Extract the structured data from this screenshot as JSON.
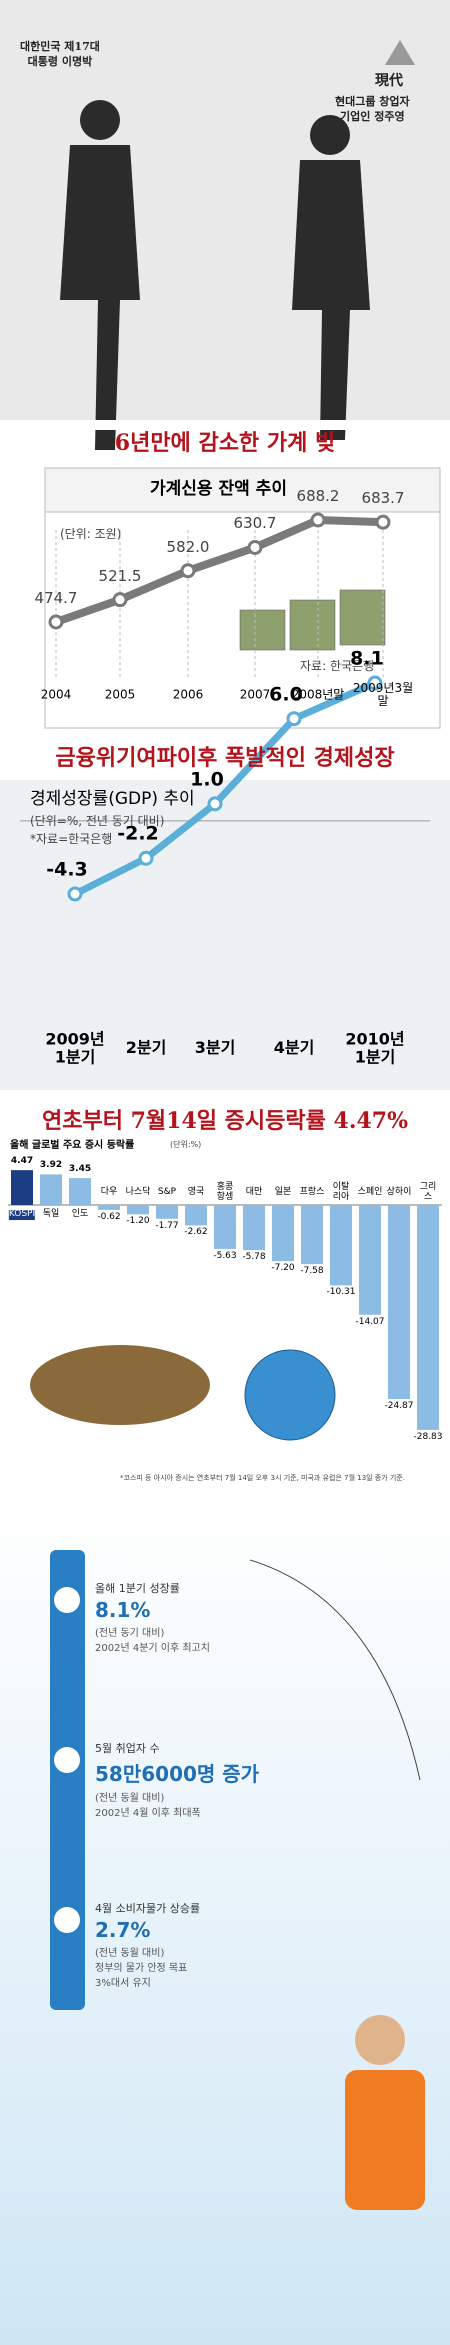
{
  "top_photo": {
    "left_caption": "대한민국 제17대\n대통령 이명박",
    "right_logo": "現代",
    "right_caption": "현대그룹 창업자\n기업인 정주영"
  },
  "sections": [
    "6년만에 감소한 가계 빚",
    "금융위기여파이후 폭발적인 경제성장",
    "연초부터 7월14일 증시등락률 4.47%"
  ],
  "chart_data": [
    {
      "type": "line",
      "title": "가계신용 잔액 추이",
      "unit": "(단위: 조원)",
      "source": "자료: 한국은행",
      "categories": [
        "2004",
        "2005",
        "2006",
        "2007",
        "2008년말",
        "2009년3월말"
      ],
      "values": [
        474.7,
        521.5,
        582.0,
        630.7,
        688.2,
        683.7
      ],
      "value_labels": [
        "474.7",
        "521.5",
        "582.0",
        "630.7",
        "688.2",
        "683.7"
      ],
      "color": "#7a7a7a"
    },
    {
      "type": "line",
      "title": "경제성장률(GDP) 추이",
      "unit": "(단위=%, 전년 동기 대비)",
      "source": "*자료=한국은행",
      "categories": [
        "2009년\n1분기",
        "2분기",
        "3분기",
        "4분기",
        "2010년\n1분기"
      ],
      "values": [
        -4.3,
        -2.2,
        1.0,
        6.0,
        8.1
      ],
      "value_labels": [
        "-4.3",
        "-2.2",
        "1.0",
        "6.0",
        "8.1"
      ],
      "color": "#5aaed8"
    },
    {
      "type": "bar",
      "title": "올해 글로벌 주요 증시 등락률",
      "unit": "(단위:%)",
      "categories": [
        "KOSPI",
        "독일",
        "인도",
        "다우",
        "나스닥",
        "S&P",
        "영국",
        "홍콩\n항셍",
        "대만",
        "일본",
        "프랑스",
        "이탈\n리아",
        "스페인",
        "상하이",
        "그리스"
      ],
      "values": [
        4.47,
        3.92,
        3.45,
        -0.62,
        -1.2,
        -1.77,
        -2.62,
        -5.63,
        -5.78,
        -7.2,
        -7.58,
        -10.31,
        -14.07,
        -24.87,
        -28.83
      ],
      "value_labels": [
        "4.47",
        "3.92",
        "3.45",
        "-0.62",
        "-1.20",
        "-1.77",
        "-2.62",
        "-5.63",
        "-5.78",
        "-7.20",
        "-7.58",
        "-10.31",
        "-14.07",
        "-24.87",
        "-28.83"
      ],
      "colors": [
        "#1c3c84",
        "#8cbbe3",
        "#8cbbe3",
        "#8cbbe3",
        "#8cbbe3",
        "#8cbbe3",
        "#8cbbe3",
        "#8cbbe3",
        "#8cbbe3",
        "#8cbbe3",
        "#8cbbe3",
        "#8cbbe3",
        "#8cbbe3",
        "#8cbbe3",
        "#8cbbe3"
      ],
      "note": "*코스피 등 아시아 증시는 연초부터 7월 14일 오후 3시 기준, 미국과 유럽은 7월 13일 종가 기준."
    }
  ],
  "indicators": [
    {
      "label": "올해 1분기 성장률",
      "value": "8.1%",
      "note1": "(전년 동기 대비)",
      "note2": "2002년 4분기 이후 최고치"
    },
    {
      "label": "5월 취업자 수",
      "value": "58만6000명 증가",
      "note1": "(전년 동월 대비)",
      "note2": "2002년 4월 이후 최대폭"
    },
    {
      "label": "4월 소비자물가 상승률",
      "value": "2.7%",
      "note1": "(전년 동월 대비)",
      "note2": "정부의 물가 안정 목표\n3%대서 유지"
    }
  ]
}
